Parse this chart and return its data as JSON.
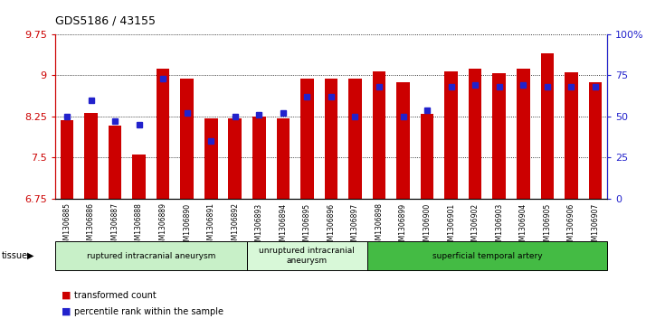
{
  "title": "GDS5186 / 43155",
  "samples": [
    "GSM1306885",
    "GSM1306886",
    "GSM1306887",
    "GSM1306888",
    "GSM1306889",
    "GSM1306890",
    "GSM1306891",
    "GSM1306892",
    "GSM1306893",
    "GSM1306894",
    "GSM1306895",
    "GSM1306896",
    "GSM1306897",
    "GSM1306898",
    "GSM1306899",
    "GSM1306900",
    "GSM1306901",
    "GSM1306902",
    "GSM1306903",
    "GSM1306904",
    "GSM1306905",
    "GSM1306906",
    "GSM1306907"
  ],
  "red_bars": [
    8.18,
    8.32,
    8.08,
    7.56,
    9.12,
    8.95,
    8.22,
    8.22,
    8.25,
    8.22,
    8.95,
    8.95,
    8.95,
    9.08,
    8.87,
    8.3,
    9.07,
    9.12,
    9.04,
    9.12,
    9.4,
    9.05,
    8.88
  ],
  "blue_percentiles": [
    50,
    60,
    47,
    45,
    73,
    52,
    35,
    50,
    51,
    52,
    62,
    62,
    50,
    68,
    50,
    54,
    68,
    69,
    68,
    69,
    68,
    68,
    68
  ],
  "ylim_left": [
    6.75,
    9.75
  ],
  "yticks_left": [
    6.75,
    7.5,
    8.25,
    9.0,
    9.75
  ],
  "ytick_labels_left": [
    "6.75",
    "7.5",
    "8.25",
    "9",
    "9.75"
  ],
  "ylim_right": [
    0,
    100
  ],
  "yticks_right": [
    0,
    25,
    50,
    75,
    100
  ],
  "ytick_labels_right": [
    "0",
    "25",
    "50",
    "75",
    "100%"
  ],
  "groups": [
    {
      "label": "ruptured intracranial aneurysm",
      "start": 0,
      "end": 8,
      "color": "#c8f0c8"
    },
    {
      "label": "unruptured intracranial\naneurysm",
      "start": 8,
      "end": 13,
      "color": "#d8f8d8"
    },
    {
      "label": "superficial temporal artery",
      "start": 13,
      "end": 23,
      "color": "#44bb44"
    }
  ],
  "tissue_label": "tissue",
  "red_color": "#cc0000",
  "blue_color": "#2222cc",
  "bar_width": 0.55,
  "legend_red": "transformed count",
  "legend_blue": "percentile rank within the sample"
}
